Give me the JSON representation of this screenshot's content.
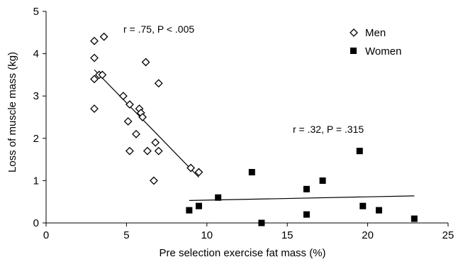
{
  "chart_data": {
    "type": "scatter",
    "xlabel": "Pre selection exercise fat mass (%)",
    "ylabel": "Loss of muscle mass (kg)",
    "xlim": [
      0,
      25
    ],
    "ylim": [
      0,
      5
    ],
    "xticks": [
      0,
      5,
      10,
      15,
      20,
      25
    ],
    "yticks": [
      0,
      1,
      2,
      3,
      4,
      5
    ],
    "grid": false,
    "legend_position": "top-right",
    "series": [
      {
        "name": "Men",
        "marker": "open-diamond",
        "color": "#000000",
        "points": [
          [
            3.0,
            4.3
          ],
          [
            3.6,
            4.4
          ],
          [
            3.0,
            3.9
          ],
          [
            3.3,
            3.5
          ],
          [
            3.5,
            3.5
          ],
          [
            3.0,
            3.4
          ],
          [
            6.2,
            3.8
          ],
          [
            7.0,
            3.3
          ],
          [
            3.0,
            2.7
          ],
          [
            4.8,
            3.0
          ],
          [
            5.2,
            2.8
          ],
          [
            5.8,
            2.7
          ],
          [
            5.9,
            2.6
          ],
          [
            6.0,
            2.5
          ],
          [
            5.1,
            2.4
          ],
          [
            5.6,
            2.1
          ],
          [
            6.8,
            1.9
          ],
          [
            5.2,
            1.7
          ],
          [
            6.3,
            1.7
          ],
          [
            7.0,
            1.7
          ],
          [
            6.7,
            1.0
          ],
          [
            9.0,
            1.3
          ],
          [
            9.5,
            1.2
          ]
        ],
        "trendline": {
          "x": [
            3.0,
            9.5
          ],
          "y": [
            3.62,
            1.08
          ]
        },
        "annotation": "r = .75, P < .005"
      },
      {
        "name": "Women",
        "marker": "filled-square",
        "color": "#000000",
        "points": [
          [
            8.9,
            0.3
          ],
          [
            9.5,
            0.4
          ],
          [
            10.7,
            0.6
          ],
          [
            12.8,
            1.2
          ],
          [
            13.4,
            0.0
          ],
          [
            16.2,
            0.8
          ],
          [
            16.2,
            0.2
          ],
          [
            17.2,
            1.0
          ],
          [
            19.5,
            1.7
          ],
          [
            19.7,
            0.4
          ],
          [
            20.7,
            0.3
          ],
          [
            22.9,
            0.1
          ]
        ],
        "trendline": {
          "x": [
            8.9,
            22.9
          ],
          "y": [
            0.53,
            0.64
          ]
        },
        "annotation": "r = .32, P = .315"
      }
    ]
  }
}
